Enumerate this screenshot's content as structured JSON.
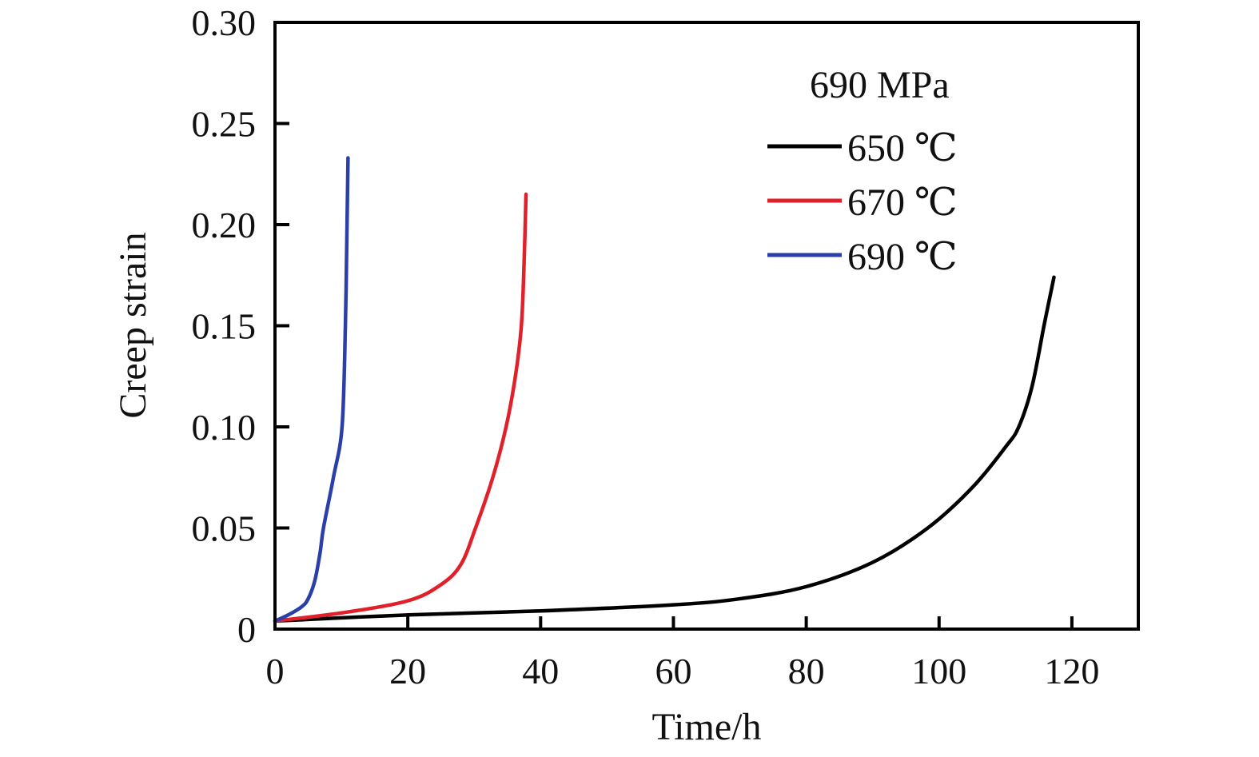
{
  "chart_data": {
    "type": "line",
    "title": "",
    "xlabel": "Time/h",
    "ylabel": "Creep strain",
    "xlim": [
      0,
      130
    ],
    "ylim": [
      0,
      0.3
    ],
    "xticks": [
      0,
      20,
      40,
      60,
      80,
      100,
      120
    ],
    "xtick_labels": [
      "0",
      "20",
      "40",
      "60",
      "80",
      "100",
      "120"
    ],
    "yticks": [
      0,
      0.05,
      0.1,
      0.15,
      0.2,
      0.25,
      0.3
    ],
    "ytick_labels": [
      "0",
      "0.05",
      "0.10",
      "0.15",
      "0.20",
      "0.25",
      "0.30"
    ],
    "grid": false,
    "legend_title": "690 MPa",
    "legend_position": "top-right",
    "series": [
      {
        "name": "650 ℃",
        "color": "#000000",
        "x": [
          0,
          20,
          40,
          60,
          70,
          80,
          90,
          98.3,
          105,
          110,
          112,
          114,
          115.8,
          117.3
        ],
        "y": [
          0.004,
          0.007,
          0.009,
          0.012,
          0.015,
          0.021,
          0.033,
          0.05,
          0.07,
          0.09,
          0.1,
          0.12,
          0.15,
          0.174
        ]
      },
      {
        "name": "670 ℃",
        "color": "#e0202a",
        "x": [
          0,
          10,
          20,
          25,
          28,
          30.2,
          32.8,
          34.8,
          36.2,
          37.1,
          37.5,
          37.8
        ],
        "y": [
          0.004,
          0.008,
          0.014,
          0.022,
          0.032,
          0.05,
          0.075,
          0.1,
          0.125,
          0.15,
          0.18,
          0.215
        ]
      },
      {
        "name": "690 ℃",
        "color": "#2a3fa8",
        "x": [
          0,
          2,
          4,
          5,
          6,
          6.8,
          7.3,
          8.8,
          10.1,
          10.6,
          10.85,
          11
        ],
        "y": [
          0.004,
          0.007,
          0.011,
          0.015,
          0.024,
          0.038,
          0.05,
          0.075,
          0.1,
          0.15,
          0.2,
          0.233
        ]
      }
    ]
  }
}
